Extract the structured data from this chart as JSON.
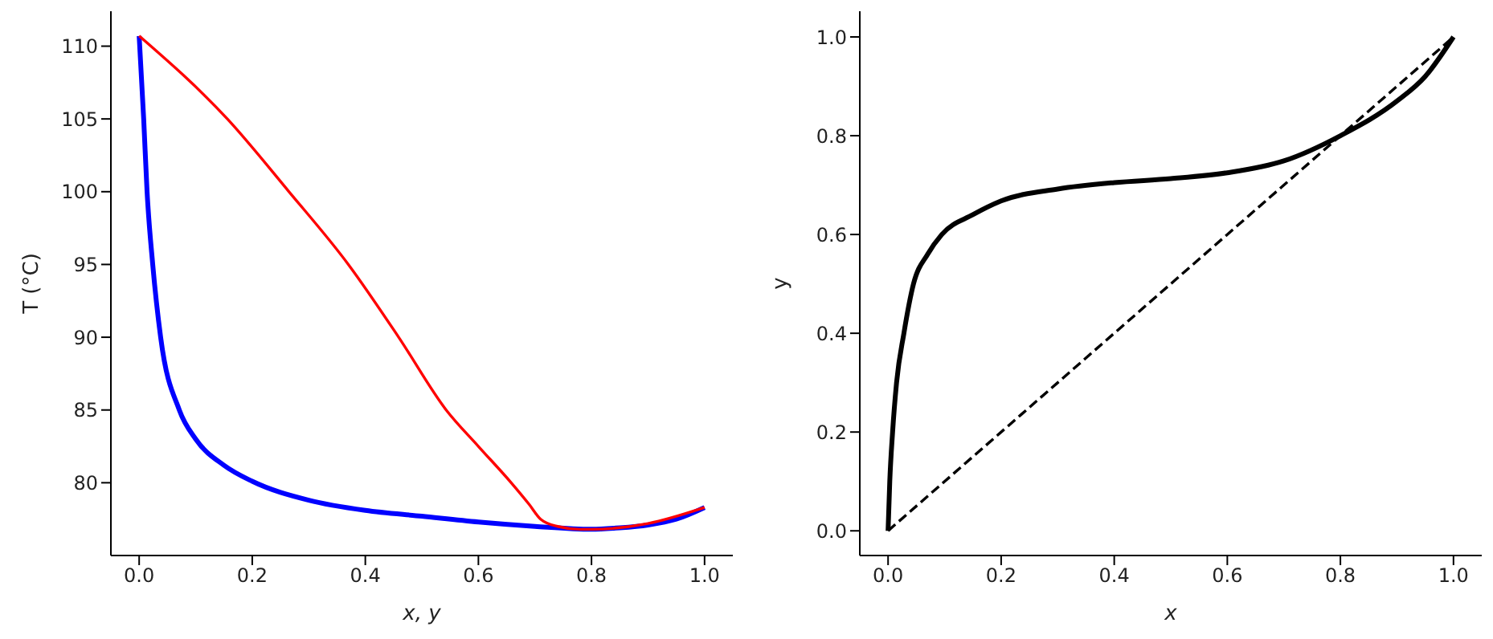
{
  "chart_data": [
    {
      "type": "line",
      "xlabel": "x, y",
      "ylabel": "T (°C)",
      "xlim": [
        -0.05,
        1.05
      ],
      "ylim": [
        75,
        112.4
      ],
      "xticks": [
        {
          "value": 0,
          "label": "0.0"
        },
        {
          "value": 0.2,
          "label": "0.2"
        },
        {
          "value": 0.4,
          "label": "0.4"
        },
        {
          "value": 0.6,
          "label": "0.6"
        },
        {
          "value": 0.8,
          "label": "0.8"
        },
        {
          "value": 1,
          "label": "1.0"
        }
      ],
      "yticks": [
        80,
        85,
        90,
        95,
        100,
        105,
        110
      ],
      "series": [
        {
          "color": "#0000ff",
          "line_style": "solid",
          "x": [
            0,
            0.008,
            0.014,
            0.024,
            0.038,
            0.071,
            0.1,
            0.15,
            0.2,
            0.3,
            0.4,
            0.5,
            0.6,
            0.7,
            0.8,
            0.85,
            0.9,
            0.95,
            1.0
          ],
          "values": [
            110.7,
            105,
            100,
            95,
            90,
            85,
            83,
            81.2,
            80.1,
            78.8,
            78.1,
            77.7,
            77.3,
            77.0,
            76.8,
            76.9,
            77.1,
            77.5,
            78.3
          ]
        },
        {
          "color": "#ff0000",
          "line_style": "solid",
          "x": [
            0,
            0.156,
            0.265,
            0.37,
            0.459,
            0.543,
            0.6,
            0.658,
            0.69,
            0.71,
            0.74,
            0.78,
            0.8,
            0.9,
            1.0
          ],
          "values": [
            110.7,
            105,
            100,
            95,
            90,
            85,
            82.5,
            80,
            78.5,
            77.5,
            77,
            76.8,
            76.8,
            77.2,
            78.3
          ]
        }
      ]
    },
    {
      "type": "line",
      "xlabel": "x",
      "ylabel": "y",
      "xlim": [
        -0.05,
        1.05
      ],
      "ylim": [
        -0.05,
        1.052
      ],
      "xticks": [
        {
          "value": 0,
          "label": "0.0"
        },
        {
          "value": 0.2,
          "label": "0.2"
        },
        {
          "value": 0.4,
          "label": "0.4"
        },
        {
          "value": 0.6,
          "label": "0.6"
        },
        {
          "value": 0.8,
          "label": "0.8"
        },
        {
          "value": 1,
          "label": "1.0"
        }
      ],
      "yticks": [
        {
          "value": 0,
          "label": "0.0"
        },
        {
          "value": 0.2,
          "label": "0.2"
        },
        {
          "value": 0.4,
          "label": "0.4"
        },
        {
          "value": 0.6,
          "label": "0.6"
        },
        {
          "value": 0.8,
          "label": "0.8"
        },
        {
          "value": 1,
          "label": "1.0"
        }
      ],
      "series": [
        {
          "color": "#000000",
          "line_style": "solid",
          "x": [
            0,
            0.003,
            0.008,
            0.015,
            0.028,
            0.045,
            0.07,
            0.095,
            0.15,
            0.2,
            0.3,
            0.4,
            0.5,
            0.6,
            0.7,
            0.8,
            0.9,
            0.95,
            1.0
          ],
          "values": [
            0,
            0.1,
            0.2,
            0.3,
            0.4,
            0.5,
            0.56,
            0.6,
            0.64,
            0.668,
            0.692,
            0.705,
            0.713,
            0.725,
            0.749,
            0.8,
            0.87,
            0.92,
            1.0
          ]
        },
        {
          "color": "#000000",
          "line_style": "dashed",
          "x": [
            0,
            1
          ],
          "values": [
            0,
            1
          ]
        }
      ]
    }
  ]
}
